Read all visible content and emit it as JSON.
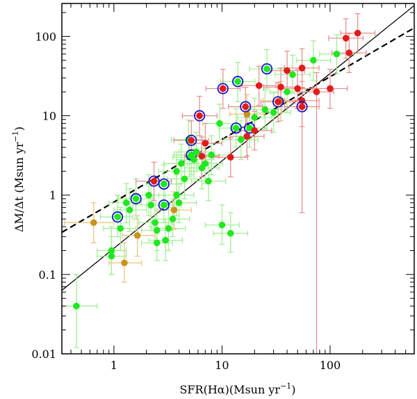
{
  "chart_data": {
    "type": "scatter",
    "xscale": "log",
    "yscale": "log",
    "xlim": [
      0.33,
      600
    ],
    "ylim": [
      0.01,
      260
    ],
    "xlabel_base": "SFR(H",
    "xlabel_greek": "α",
    "xlabel_rest": ")(Msun yr",
    "xlabel_exp": "−1",
    "xlabel_close": ")",
    "ylabel_base": "ΔM/Δt  (Msun yr",
    "ylabel_exp": "−1",
    "ylabel_close": ")",
    "xticks": [
      {
        "value": 1,
        "label": "1"
      },
      {
        "value": 10,
        "label": "10"
      },
      {
        "value": 100,
        "label": "100"
      }
    ],
    "yticks": [
      {
        "value": 0.01,
        "label": "0.01"
      },
      {
        "value": 0.1,
        "label": "0.1"
      },
      {
        "value": 1,
        "label": "1"
      },
      {
        "value": 10,
        "label": "10"
      },
      {
        "value": 100,
        "label": "100"
      }
    ],
    "lines": [
      {
        "name": "solid-fit",
        "style": "solid",
        "points": [
          [
            0.33,
            0.063
          ],
          [
            600,
            245
          ]
        ]
      },
      {
        "name": "dashed-fit",
        "style": "dashed",
        "points": [
          [
            0.33,
            0.34
          ],
          [
            600,
            128
          ]
        ]
      }
    ],
    "colors": {
      "green": "#1ee81e",
      "red": "#e21a1a",
      "orange": "#c8951a",
      "ring": "#1414c8"
    },
    "series": [
      {
        "name": "green",
        "color": "#1ee81e",
        "errcolor": "#9cef8c",
        "points": [
          {
            "x": 0.45,
            "y": 0.04,
            "xe": [
              0.33,
              0.7
            ],
            "ye": [
              0.012,
              0.1
            ]
          },
          {
            "x": 0.95,
            "y": 0.2,
            "xe": [
              0.7,
              1.3
            ],
            "ye": [
              0.1,
              0.4
            ]
          },
          {
            "x": 0.95,
            "y": 0.17,
            "xe": [
              0.7,
              1.3
            ],
            "ye": [
              0.1,
              0.3
            ]
          },
          {
            "x": 1.08,
            "y": 0.53,
            "xe": [
              0.75,
              1.5
            ],
            "ye": [
              0.3,
              1.0
            ],
            "ring": true
          },
          {
            "x": 1.15,
            "y": 0.38,
            "xe": [
              0.8,
              1.6
            ],
            "ye": [
              0.2,
              0.7
            ]
          },
          {
            "x": 1.3,
            "y": 0.8,
            "xe": [
              0.9,
              1.8
            ],
            "ye": [
              0.45,
              1.4
            ]
          },
          {
            "x": 1.4,
            "y": 0.65,
            "xe": [
              1.0,
              2.0
            ],
            "ye": [
              0.35,
              1.2
            ]
          },
          {
            "x": 1.6,
            "y": 0.9,
            "xe": [
              1.1,
              2.3
            ],
            "ye": [
              0.5,
              1.6
            ],
            "ring": true
          },
          {
            "x": 2.1,
            "y": 1.0,
            "xe": [
              1.5,
              3.0
            ],
            "ye": [
              0.55,
              1.8
            ]
          },
          {
            "x": 2.2,
            "y": 0.75,
            "xe": [
              1.5,
              3.1
            ],
            "ye": [
              0.4,
              1.3
            ]
          },
          {
            "x": 2.4,
            "y": 0.45,
            "xe": [
              1.7,
              3.4
            ],
            "ye": [
              0.25,
              0.8
            ]
          },
          {
            "x": 2.5,
            "y": 0.36,
            "xe": [
              1.8,
              3.5
            ],
            "ye": [
              0.2,
              0.65
            ]
          },
          {
            "x": 2.5,
            "y": 0.25,
            "xe": [
              1.8,
              3.5
            ],
            "ye": [
              0.15,
              0.45
            ]
          },
          {
            "x": 2.9,
            "y": 1.38,
            "xe": [
              2.0,
              4.2
            ],
            "ye": [
              0.8,
              2.4
            ],
            "ring": true
          },
          {
            "x": 2.9,
            "y": 0.75,
            "xe": [
              2.0,
              4.2
            ],
            "ye": [
              0.45,
              1.3
            ],
            "ring": true
          },
          {
            "x": 3.0,
            "y": 0.27,
            "xe": [
              2.1,
              4.3
            ],
            "ye": [
              0.15,
              0.5
            ]
          },
          {
            "x": 3.2,
            "y": 0.38,
            "xe": [
              2.2,
              4.6
            ],
            "ye": [
              0.2,
              0.7
            ]
          },
          {
            "x": 3.5,
            "y": 0.5,
            "xe": [
              2.4,
              5.0
            ],
            "ye": [
              0.3,
              0.9
            ]
          },
          {
            "x": 3.8,
            "y": 1.0,
            "xe": [
              2.6,
              5.5
            ],
            "ye": [
              0.55,
              1.8
            ]
          },
          {
            "x": 3.8,
            "y": 2.0,
            "xe": [
              2.6,
              5.5
            ],
            "ye": [
              1.1,
              3.5
            ]
          },
          {
            "x": 4.0,
            "y": 0.8,
            "xe": [
              2.8,
              5.8
            ],
            "ye": [
              0.45,
              1.4
            ]
          },
          {
            "x": 4.2,
            "y": 2.5,
            "xe": [
              2.9,
              6.0
            ],
            "ye": [
              1.4,
              4.4
            ]
          },
          {
            "x": 4.5,
            "y": 1.6,
            "xe": [
              3.1,
              6.5
            ],
            "ye": [
              0.9,
              2.8
            ]
          },
          {
            "x": 5.0,
            "y": 3.0,
            "xe": [
              3.5,
              7.2
            ],
            "ye": [
              1.7,
              5.3
            ]
          },
          {
            "x": 5.2,
            "y": 3.2,
            "xe": [
              3.6,
              7.5
            ],
            "ye": [
              1.8,
              5.6
            ],
            "ring": true
          },
          {
            "x": 5.5,
            "y": 2.8,
            "xe": [
              3.8,
              8.0
            ],
            "ye": [
              1.6,
              4.9
            ]
          },
          {
            "x": 5.8,
            "y": 3.5,
            "xe": [
              4.0,
              8.4
            ],
            "ye": [
              2.0,
              6.2
            ]
          },
          {
            "x": 6.5,
            "y": 2.2,
            "xe": [
              4.5,
              9.4
            ],
            "ye": [
              1.2,
              3.9
            ]
          },
          {
            "x": 7.0,
            "y": 2.5,
            "xe": [
              4.8,
              10.1
            ],
            "ye": [
              1.4,
              4.4
            ]
          },
          {
            "x": 7.5,
            "y": 1.5,
            "xe": [
              5.2,
              10.8
            ],
            "ye": [
              0.85,
              2.6
            ]
          },
          {
            "x": 8.0,
            "y": 3.2,
            "xe": [
              5.5,
              11.5
            ],
            "ye": [
              1.8,
              5.6
            ]
          },
          {
            "x": 9.5,
            "y": 8.0,
            "xe": [
              6.6,
              13.7
            ],
            "ye": [
              4.5,
              14
            ]
          },
          {
            "x": 10.0,
            "y": 0.42,
            "xe": [
              7.0,
              14.4
            ],
            "ye": [
              0.24,
              0.75
            ]
          },
          {
            "x": 12.0,
            "y": 0.33,
            "xe": [
              8.3,
              17.3
            ],
            "ye": [
              0.19,
              0.6
            ]
          },
          {
            "x": 13.5,
            "y": 7.0,
            "xe": [
              9.4,
              19.5
            ],
            "ye": [
              4.0,
              12.3
            ],
            "ring": true
          },
          {
            "x": 14.0,
            "y": 27.0,
            "xe": [
              9.7,
              20.2
            ],
            "ye": [
              15,
              47
            ],
            "ring": true
          },
          {
            "x": 15.0,
            "y": 5.0,
            "xe": [
              10.4,
              21.6
            ],
            "ye": [
              2.8,
              8.8
            ]
          },
          {
            "x": 18.0,
            "y": 7.0,
            "xe": [
              12.5,
              26
            ],
            "ye": [
              4.0,
              12.3
            ],
            "ring": true
          },
          {
            "x": 20.0,
            "y": 9.5,
            "xe": [
              13.9,
              28.8
            ],
            "ye": [
              5.4,
              16.7
            ]
          },
          {
            "x": 25.0,
            "y": 12.0,
            "xe": [
              17.4,
              36
            ],
            "ye": [
              6.8,
              21
            ]
          },
          {
            "x": 26.0,
            "y": 39.0,
            "xe": [
              18,
              37.5
            ],
            "ye": [
              22,
              68
            ],
            "ring": true
          },
          {
            "x": 30.0,
            "y": 11.0,
            "xe": [
              20.8,
              43
            ],
            "ye": [
              6.2,
              19.3
            ]
          },
          {
            "x": 40.0,
            "y": 20.0,
            "xe": [
              27.8,
              58
            ],
            "ye": [
              11,
              35
            ]
          },
          {
            "x": 45.0,
            "y": 33.0,
            "xe": [
              31,
              65
            ],
            "ye": [
              19,
              58
            ]
          },
          {
            "x": 70.0,
            "y": 50.0,
            "xe": [
              49,
              101
            ],
            "ye": [
              28,
              88
            ]
          },
          {
            "x": 115.0,
            "y": 60.0,
            "xe": [
              80,
              166
            ],
            "ye": [
              34,
              105
            ]
          },
          {
            "x": 4.9,
            "y": 5.0,
            "xe": [
              3.4,
              7.0
            ],
            "ye": [
              2.8,
              8.8
            ]
          }
        ]
      },
      {
        "name": "orange",
        "color": "#c8951a",
        "errcolor": "#e8c27a",
        "points": [
          {
            "x": 0.65,
            "y": 0.45,
            "xe": [
              0.35,
              1.0
            ],
            "ye": [
              0.25,
              0.8
            ]
          },
          {
            "x": 1.25,
            "y": 0.14,
            "xe": [
              0.9,
              1.8
            ],
            "ye": [
              0.08,
              0.25
            ]
          },
          {
            "x": 1.65,
            "y": 0.31,
            "xe": [
              1.2,
              2.4
            ],
            "ye": [
              0.17,
              0.55
            ]
          },
          {
            "x": 3.6,
            "y": 0.65,
            "xe": [
              2.5,
              5.2
            ],
            "ye": [
              0.37,
              1.1
            ]
          },
          {
            "x": 17.0,
            "y": 10.5,
            "xe": [
              11.8,
              24.5
            ],
            "ye": [
              5.9,
              18.5
            ]
          },
          {
            "x": 35.0,
            "y": 15.5,
            "xe": [
              24,
              50
            ],
            "ye": [
              8.7,
              27
            ]
          }
        ]
      },
      {
        "name": "red",
        "color": "#e21a1a",
        "errcolor": "#e78a8a",
        "points": [
          {
            "x": 2.35,
            "y": 1.5,
            "xe": [
              1.6,
              3.4
            ],
            "ye": [
              0.85,
              2.6
            ],
            "ring": true
          },
          {
            "x": 5.2,
            "y": 4.9,
            "xe": [
              3.6,
              7.5
            ],
            "ye": [
              2.8,
              8.6
            ],
            "ring": true
          },
          {
            "x": 6.2,
            "y": 10.0,
            "xe": [
              4.3,
              9.0
            ],
            "ye": [
              5.6,
              17.6
            ],
            "ring": true
          },
          {
            "x": 6.5,
            "y": 3.1,
            "xe": [
              4.5,
              9.4
            ],
            "ye": [
              1.7,
              5.4
            ]
          },
          {
            "x": 7.0,
            "y": 4.5,
            "xe": [
              4.9,
              10
            ],
            "ye": [
              2.5,
              8.0
            ]
          },
          {
            "x": 10.2,
            "y": 22.0,
            "xe": [
              7.1,
              14.7
            ],
            "ye": [
              12.4,
              38.6
            ],
            "ring": true
          },
          {
            "x": 12.0,
            "y": 3.0,
            "xe": [
              8.3,
              17.3
            ],
            "ye": [
              1.7,
              5.3
            ]
          },
          {
            "x": 16.5,
            "y": 13.0,
            "xe": [
              11.5,
              23.8
            ],
            "ye": [
              7.3,
              22.8
            ],
            "ring": true
          },
          {
            "x": 17.0,
            "y": 5.5,
            "xe": [
              11.8,
              24.5
            ],
            "ye": [
              3.1,
              9.7
            ]
          },
          {
            "x": 20.0,
            "y": 6.5,
            "xe": [
              13.9,
              28.8
            ],
            "ye": [
              3.7,
              11.4
            ]
          },
          {
            "x": 22.0,
            "y": 24.0,
            "xe": [
              15.3,
              31.7
            ],
            "ye": [
              13.5,
              42
            ]
          },
          {
            "x": 35.0,
            "y": 23.0,
            "xe": [
              24.3,
              50.4
            ],
            "ye": [
              13,
              40
            ]
          },
          {
            "x": 33.0,
            "y": 15.0,
            "xe": [
              22.9,
              47.5
            ],
            "ye": [
              8.4,
              26.3
            ],
            "ring": true
          },
          {
            "x": 40.0,
            "y": 37.0,
            "xe": [
              27.8,
              58
            ],
            "ye": [
              21,
              65
            ]
          },
          {
            "x": 50.0,
            "y": 22.0,
            "xe": [
              34.7,
              72
            ],
            "ye": [
              12.4,
              38.6
            ]
          },
          {
            "x": 55.0,
            "y": 40.0,
            "xe": [
              38,
              79
            ],
            "ye": [
              22.5,
              70
            ]
          },
          {
            "x": 55.0,
            "y": 15.5,
            "xe": [
              38,
              79
            ],
            "ye": [
              0.6,
              27
            ]
          },
          {
            "x": 55.0,
            "y": 13.0,
            "xe": [
              38,
              79
            ],
            "ye": [
              7.3,
              22.8
            ],
            "ring": true
          },
          {
            "x": 75.0,
            "y": 20.0,
            "xe": [
              52,
              108
            ],
            "ye": [
              0.01,
              35
            ]
          },
          {
            "x": 100.0,
            "y": 22.0,
            "xe": [
              69,
              144
            ],
            "ye": [
              12.4,
              38.6
            ]
          },
          {
            "x": 140.0,
            "y": 95.0,
            "xe": [
              97,
              202
            ],
            "ye": [
              53,
              167
            ]
          },
          {
            "x": 150.0,
            "y": 62.0,
            "xe": [
              104,
              216
            ],
            "ye": [
              35,
              109
            ]
          },
          {
            "x": 180.0,
            "y": 110.0,
            "xe": [
              125,
              260
            ],
            "ye": [
              62,
              193
            ]
          }
        ]
      }
    ]
  }
}
